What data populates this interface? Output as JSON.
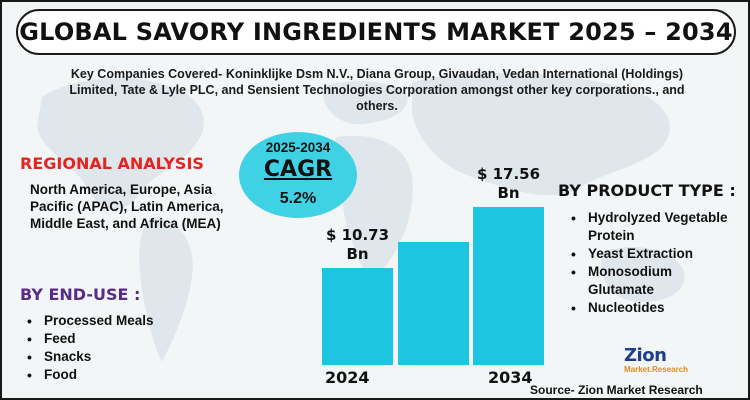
{
  "title": "GLOBAL SAVORY INGREDIENTS MARKET 2025 – 2034",
  "companies_text": "Key Companies Covered- Koninklijke Dsm N.V., Diana Group, Givaudan, Vedan International (Holdings) Limited, Tate & Lyle PLC, and Sensient Technologies Corporation amongst other key corporations., and others.",
  "regional": {
    "heading": "REGIONAL ANALYSIS",
    "text": "North America, Europe, Asia Pacific (APAC), Latin America, Middle East, and Africa (MEA)"
  },
  "end_use": {
    "heading": "BY END-USE :",
    "items": [
      "Processed Meals",
      "Feed",
      "Snacks",
      "Food"
    ]
  },
  "product_type": {
    "heading": "BY PRODUCT TYPE :",
    "items": [
      "Hydrolyzed Vegetable Protein",
      "Yeast Extraction",
      "Monosodium Glutamate",
      "Nucleotides"
    ]
  },
  "cagr": {
    "years": "2025-2034",
    "label": "CAGR",
    "value": "5.2%"
  },
  "chart_data": {
    "type": "bar",
    "categories": [
      "2024",
      "",
      "2034"
    ],
    "values": [
      10.73,
      13.7,
      17.56
    ],
    "value_labels": [
      "$ 10.73 Bn",
      "",
      "$ 17.56 Bn"
    ],
    "unit": "Bn",
    "bar_color": "#1ec5e0"
  },
  "logo": {
    "name": "Zion",
    "sub": "Market.Research"
  },
  "source": "Source- Zion Market Research",
  "colors": {
    "accent_red": "#e52421",
    "accent_purple": "#5a2a87",
    "bar": "#1ec5e0",
    "cagr_circle": "#3fd2e4"
  }
}
